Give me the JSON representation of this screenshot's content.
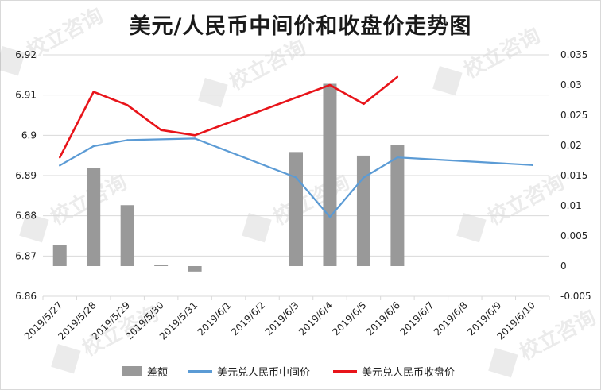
{
  "title": "美元/人民币中间价和收盘价走势图",
  "watermark": "校立咨询",
  "colors": {
    "bars": "#999999",
    "midpoint_line": "#5B9BD5",
    "close_line": "#E8141A",
    "grid": "#d9d9d9"
  },
  "chart_data": {
    "type": "bar+line",
    "title": "美元/人民币中间价和收盘价走势图",
    "categories": [
      "2019/5/27",
      "2019/5/28",
      "2019/5/29",
      "2019/5/30",
      "2019/5/31",
      "2019/6/1",
      "2019/6/2",
      "2019/6/3",
      "2019/6/4",
      "2019/6/5",
      "2019/6/6",
      "2019/6/7",
      "2019/6/8",
      "2019/6/9",
      "2019/6/10"
    ],
    "y_left": {
      "min": 6.86,
      "max": 6.92,
      "ticks": [
        "6.86",
        "6.87",
        "6.88",
        "6.89",
        "6.9",
        "6.91",
        "6.92"
      ],
      "tick_values": [
        6.86,
        6.87,
        6.88,
        6.89,
        6.9,
        6.91,
        6.92
      ]
    },
    "y_right": {
      "min": -0.005,
      "max": 0.035,
      "ticks": [
        "-0.005",
        "0",
        "0.005",
        "0.01",
        "0.015",
        "0.02",
        "0.025",
        "0.03",
        "0.035"
      ],
      "tick_values": [
        -0.005,
        0,
        0.005,
        0.01,
        0.015,
        0.02,
        0.025,
        0.03,
        0.035
      ]
    },
    "grid": "horizontal",
    "legend_position": "bottom",
    "series": [
      {
        "name": "差额",
        "type": "bar",
        "axis": "right",
        "values": [
          0.0035,
          0.0162,
          0.0101,
          0.0002,
          -0.0009,
          null,
          null,
          0.0189,
          0.0302,
          0.0183,
          0.0201,
          null,
          null,
          null,
          null
        ]
      },
      {
        "name": "美元兑人民币中间价",
        "type": "line",
        "axis": "left",
        "values": [
          6.8925,
          6.8973,
          6.8988,
          null,
          6.8992,
          null,
          null,
          6.8895,
          6.8797,
          6.8895,
          6.8945,
          null,
          null,
          null,
          6.8926
        ]
      },
      {
        "name": "美元兑人民币收盘价",
        "type": "line",
        "axis": "left",
        "values": [
          6.8945,
          6.9108,
          6.9075,
          6.9013,
          6.9,
          null,
          null,
          null,
          6.9125,
          6.9078,
          6.9145,
          null,
          null,
          null,
          null
        ]
      }
    ]
  }
}
